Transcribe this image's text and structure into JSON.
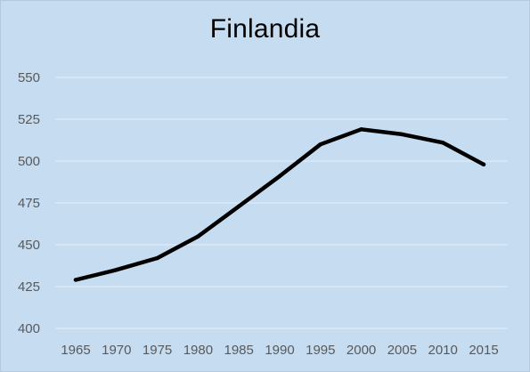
{
  "chart_data": {
    "type": "line",
    "title": "Finlandia",
    "xlabel": "",
    "ylabel": "",
    "x": [
      1965,
      1970,
      1975,
      1980,
      1985,
      1990,
      1995,
      2000,
      2005,
      2010,
      2015
    ],
    "series": [
      {
        "values": [
          429,
          435,
          442,
          455,
          473,
          491,
          510,
          519,
          516,
          511,
          498
        ]
      }
    ],
    "ylim": [
      400,
      550
    ],
    "yticks": [
      400,
      425,
      450,
      475,
      500,
      525,
      550
    ],
    "xtick_labels": [
      "1965",
      "1970",
      "1975",
      "1980",
      "1985",
      "1990",
      "1995",
      "2000",
      "2005",
      "2010",
      "2015"
    ],
    "ytick_labels": [
      "400",
      "425",
      "450",
      "475",
      "500",
      "525",
      "550"
    ],
    "grid": true,
    "legend": "none",
    "colors": {
      "background": "#c6dcf1",
      "line": "#000000",
      "grid": "#e1ecf7",
      "tick_text": "#595959"
    }
  }
}
